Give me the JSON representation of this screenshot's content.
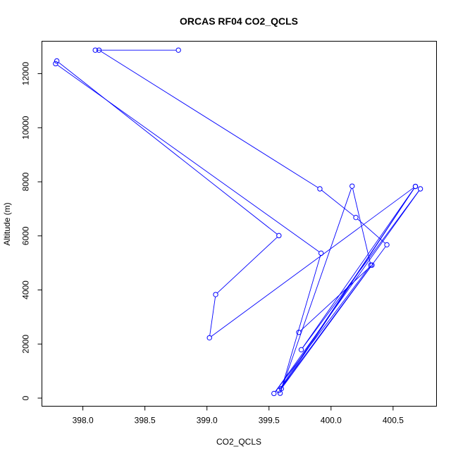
{
  "chart_data": {
    "type": "line",
    "title": "ORCAS RF04 CO2_QCLS",
    "xlabel": "CO2_QCLS",
    "ylabel": "Altitude (m)",
    "xlim": [
      397.67,
      400.85
    ],
    "ylim": [
      -300,
      13200
    ],
    "xticks": [
      398.0,
      398.5,
      399.0,
      399.5,
      400.0,
      400.5
    ],
    "xtick_labels": [
      "398.0",
      "398.5",
      "399.0",
      "399.5",
      "400.0",
      "400.5"
    ],
    "yticks": [
      0,
      2000,
      4000,
      6000,
      8000,
      10000,
      12000
    ],
    "ytick_labels": [
      "0",
      "2000",
      "4000",
      "6000",
      "8000",
      "10000",
      "12000"
    ],
    "grid": false,
    "series": [
      {
        "color": "#0000FF",
        "marker": "open-circle",
        "points": [
          {
            "x": 398.77,
            "y": 12870
          },
          {
            "x": 398.1,
            "y": 12870
          },
          {
            "x": 398.13,
            "y": 12870
          },
          {
            "x": 399.91,
            "y": 7740
          },
          {
            "x": 400.2,
            "y": 6680
          },
          {
            "x": 400.45,
            "y": 5670
          },
          {
            "x": 399.58,
            "y": 280
          },
          {
            "x": 400.68,
            "y": 7830
          },
          {
            "x": 399.02,
            "y": 2230
          },
          {
            "x": 399.07,
            "y": 3830
          },
          {
            "x": 399.58,
            "y": 6010
          },
          {
            "x": 397.79,
            "y": 12470
          },
          {
            "x": 397.78,
            "y": 12370
          },
          {
            "x": 399.92,
            "y": 5360
          },
          {
            "x": 399.59,
            "y": 180
          },
          {
            "x": 400.17,
            "y": 7840
          },
          {
            "x": 400.32,
            "y": 4920
          },
          {
            "x": 399.54,
            "y": 170
          },
          {
            "x": 400.72,
            "y": 7740
          },
          {
            "x": 399.76,
            "y": 1790
          },
          {
            "x": 400.68,
            "y": 7830
          },
          {
            "x": 399.6,
            "y": 350
          },
          {
            "x": 400.33,
            "y": 4920
          },
          {
            "x": 399.74,
            "y": 2430
          }
        ]
      }
    ]
  }
}
